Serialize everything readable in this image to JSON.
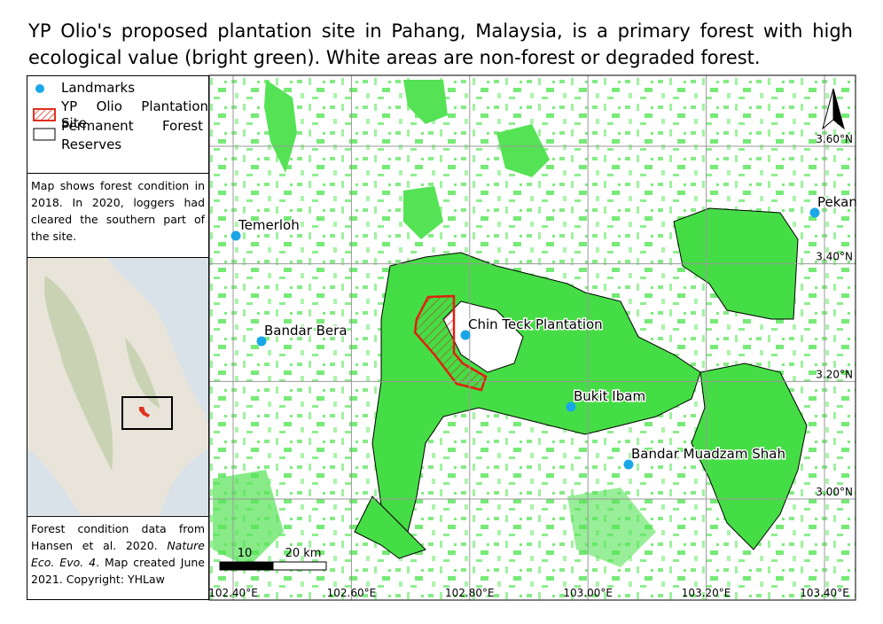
{
  "title": "YP Olio's proposed plantation site in Pahang, Malaysia, is a primary forest with high ecological value (bright green). White areas are non-forest or degraded forest.",
  "legend": {
    "items": [
      "Landmarks",
      "YP Olio Plantation Site",
      "Permanent Forest Reserves"
    ]
  },
  "note": "Map shows forest condition in 2018. In 2020, loggers had cleared the southern part of the site.",
  "credit": {
    "parts": [
      "Forest condition data from Hansen et al. 2020. ",
      "Nature Eco. Evo. 4",
      ". Map created June 2021. Copyright: YHLaw"
    ]
  },
  "map": {
    "landmarks": [
      "Temerloh",
      "Bandar Bera",
      "Chin Teck Plantation",
      "Bukit Ibam",
      "Bandar Muadzam Shah",
      "Pekan"
    ],
    "lat_ticks": [
      {
        "value": 3.6,
        "label": "3.60°N"
      },
      {
        "value": 3.4,
        "label": "3.40°N"
      },
      {
        "value": 3.2,
        "label": "3.20°N"
      },
      {
        "value": 3.0,
        "label": "3.00°N"
      }
    ],
    "lon_ticks": [
      {
        "value": 102.4,
        "label": "102.40°E"
      },
      {
        "value": 102.6,
        "label": "102.60°E"
      },
      {
        "value": 102.8,
        "label": "102.80°E"
      },
      {
        "value": 103.0,
        "label": "103.00°E"
      },
      {
        "value": 103.2,
        "label": "103.20°E"
      },
      {
        "value": 103.4,
        "label": "103.40°E"
      }
    ],
    "scale_labels": [
      "10",
      "20 km"
    ]
  }
}
